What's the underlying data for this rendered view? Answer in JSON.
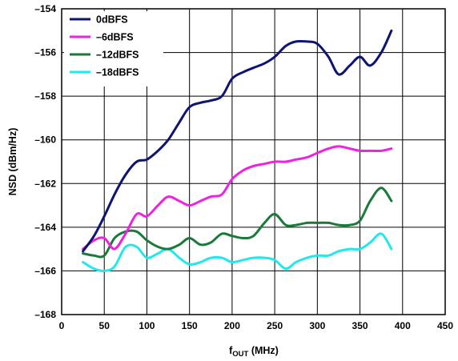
{
  "chart_data": {
    "type": "line",
    "title": "",
    "xlabel": {
      "main": "f",
      "sub": "OUT",
      "rest": " (MHz)"
    },
    "ylabel": "NSD (dBm/Hz)",
    "xlim": [
      0,
      450
    ],
    "ylim": [
      -168,
      -154
    ],
    "xticks": [
      0,
      50,
      100,
      150,
      200,
      250,
      300,
      350,
      400,
      450
    ],
    "xtick_labels": [
      "0",
      "50",
      "100",
      "150",
      "200",
      "250",
      "300",
      "350",
      "400",
      "450"
    ],
    "yticks": [
      -154,
      -156,
      -158,
      -160,
      -162,
      -164,
      -166,
      -168
    ],
    "ytick_labels": [
      "–154",
      "–156",
      "–158",
      "–160",
      "–162",
      "–164",
      "–166",
      "–168"
    ],
    "grid": true,
    "legend_position": "top-left",
    "series": [
      {
        "name": "0dBFS",
        "color": "#0d1570",
        "x": [
          25,
          38,
          50,
          62,
          75,
          88,
          100,
          113,
          125,
          138,
          150,
          163,
          175,
          188,
          200,
          213,
          225,
          238,
          250,
          263,
          275,
          288,
          300,
          313,
          325,
          338,
          350,
          362,
          375,
          387
        ],
        "y": [
          -165.1,
          -164.4,
          -163.5,
          -162.5,
          -161.6,
          -161.0,
          -160.9,
          -160.5,
          -160.0,
          -159.2,
          -158.5,
          -158.3,
          -158.2,
          -158.0,
          -157.2,
          -156.9,
          -156.7,
          -156.5,
          -156.2,
          -155.7,
          -155.5,
          -155.5,
          -155.6,
          -156.2,
          -157.0,
          -156.6,
          -156.2,
          -156.6,
          -156.0,
          -155.0
        ]
      },
      {
        "name": "–6dBFS",
        "color": "#ee22e0",
        "x": [
          25,
          38,
          50,
          62,
          75,
          88,
          100,
          113,
          125,
          138,
          150,
          163,
          175,
          188,
          200,
          213,
          225,
          238,
          250,
          263,
          275,
          288,
          300,
          313,
          325,
          338,
          350,
          362,
          375,
          387
        ],
        "y": [
          -165.0,
          -164.6,
          -164.5,
          -165.0,
          -164.3,
          -163.4,
          -163.5,
          -163.0,
          -162.6,
          -162.8,
          -163.0,
          -162.8,
          -162.6,
          -162.5,
          -161.8,
          -161.4,
          -161.2,
          -161.1,
          -161.0,
          -161.0,
          -160.9,
          -160.8,
          -160.6,
          -160.4,
          -160.3,
          -160.4,
          -160.5,
          -160.5,
          -160.5,
          -160.4
        ]
      },
      {
        "name": "–12dBFS",
        "color": "#1a7a3a",
        "x": [
          25,
          38,
          50,
          62,
          75,
          88,
          100,
          113,
          125,
          138,
          150,
          163,
          175,
          188,
          200,
          213,
          225,
          238,
          250,
          263,
          275,
          288,
          300,
          313,
          325,
          338,
          350,
          362,
          375,
          387
        ],
        "y": [
          -165.2,
          -165.3,
          -165.3,
          -164.5,
          -164.2,
          -164.2,
          -164.6,
          -164.9,
          -165.0,
          -164.8,
          -164.5,
          -164.8,
          -164.7,
          -164.3,
          -164.4,
          -164.5,
          -164.4,
          -163.8,
          -163.4,
          -163.9,
          -163.9,
          -163.8,
          -163.8,
          -163.8,
          -163.9,
          -163.9,
          -163.7,
          -162.8,
          -162.2,
          -162.8
        ]
      },
      {
        "name": "–18dBFS",
        "color": "#22e8ec",
        "x": [
          25,
          38,
          50,
          62,
          75,
          88,
          100,
          113,
          125,
          138,
          150,
          163,
          175,
          188,
          200,
          213,
          225,
          238,
          250,
          263,
          275,
          288,
          300,
          313,
          325,
          338,
          350,
          362,
          375,
          387
        ],
        "y": [
          -165.6,
          -165.9,
          -166.0,
          -165.8,
          -164.9,
          -164.9,
          -165.4,
          -165.2,
          -165.0,
          -165.4,
          -165.7,
          -165.6,
          -165.4,
          -165.4,
          -165.6,
          -165.5,
          -165.4,
          -165.4,
          -165.5,
          -165.9,
          -165.6,
          -165.4,
          -165.3,
          -165.3,
          -165.1,
          -165.0,
          -165.0,
          -164.7,
          -164.3,
          -165.0
        ]
      }
    ]
  }
}
